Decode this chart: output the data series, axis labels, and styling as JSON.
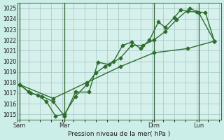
{
  "title": "",
  "xlabel": "Pression niveau de la mer( hPa )",
  "bg_color": "#cceee8",
  "plot_bg_color": "#d6f0ec",
  "grid_color": "#aacccc",
  "line_color": "#2d6e2d",
  "marker": "D",
  "markersize": 2.5,
  "linewidth": 1.0,
  "ylim": [
    1014.5,
    1025.5
  ],
  "yticks": [
    1015,
    1016,
    1017,
    1018,
    1019,
    1020,
    1021,
    1022,
    1023,
    1024,
    1025
  ],
  "xtick_labels": [
    "Sam",
    "Mar",
    "Dim",
    "Lun"
  ],
  "xtick_positions": [
    0.0,
    2.0,
    6.0,
    8.0
  ],
  "xlim": [
    -0.1,
    9.0
  ],
  "vline_positions": [
    0.0,
    2.0,
    6.0,
    8.0
  ],
  "vline_color": "#336633",
  "line1_x": [
    0.0,
    0.4,
    0.8,
    1.2,
    1.6,
    2.0,
    2.5,
    3.0,
    3.4,
    3.8,
    4.2,
    4.6,
    5.0,
    5.4,
    5.8,
    6.2,
    6.5,
    6.9,
    7.2,
    7.5,
    7.9,
    8.3,
    8.7
  ],
  "line1_y": [
    1017.8,
    1017.1,
    1016.8,
    1016.2,
    1014.85,
    1015.0,
    1016.7,
    1017.8,
    1018.9,
    1019.5,
    1020.0,
    1021.5,
    1021.8,
    1021.2,
    1022.0,
    1023.7,
    1023.2,
    1024.1,
    1024.85,
    1024.7,
    1024.65,
    1024.6,
    1021.9
  ],
  "line2_x": [
    0.0,
    0.5,
    1.0,
    1.5,
    2.0,
    2.5,
    3.1,
    3.5,
    4.0,
    4.5,
    5.0,
    5.5,
    6.0,
    6.5,
    7.0,
    7.6,
    8.0,
    8.7
  ],
  "line2_y": [
    1017.8,
    1017.0,
    1016.7,
    1016.2,
    1014.85,
    1017.1,
    1017.1,
    1019.9,
    1019.7,
    1020.3,
    1021.5,
    1021.5,
    1022.0,
    1022.8,
    1023.9,
    1025.0,
    1024.6,
    1021.9
  ],
  "line3_x": [
    0.0,
    1.5,
    3.0,
    4.5,
    6.0,
    7.5,
    8.7
  ],
  "line3_y": [
    1017.8,
    1016.5,
    1018.0,
    1019.5,
    1020.8,
    1021.2,
    1021.9
  ]
}
